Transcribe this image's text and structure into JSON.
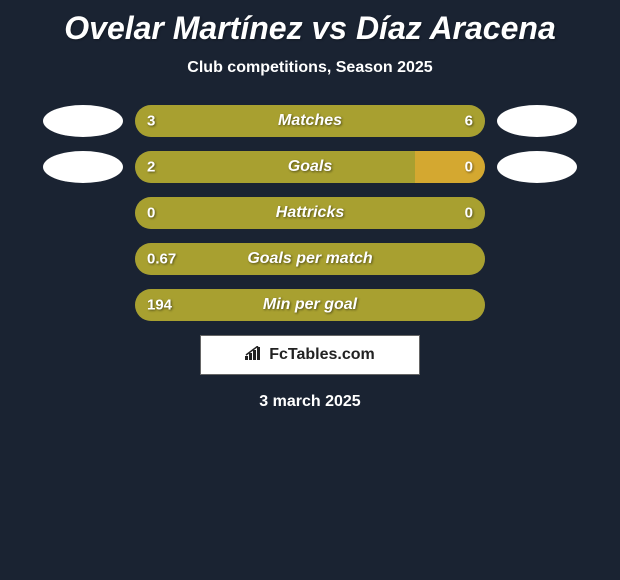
{
  "background_color": "#1a2332",
  "text_color": "#ffffff",
  "title": "Ovelar Martínez vs Díaz Aracena",
  "subtitle": "Club competitions, Season 2025",
  "date": "3 march 2025",
  "logo_text": "FcTables.com",
  "avatar_left_color": "#ffffff",
  "avatar_right_color": "#ffffff",
  "bar_background_color": "#3a4556",
  "stats": [
    {
      "label": "Matches",
      "left_value": "3",
      "right_value": "6",
      "left_pct": 33,
      "right_pct": 67,
      "left_color": "#a8a030",
      "right_color": "#a8a030",
      "show_avatars": true
    },
    {
      "label": "Goals",
      "left_value": "2",
      "right_value": "0",
      "left_pct": 80,
      "right_pct": 20,
      "left_color": "#a8a030",
      "right_color": "#d4a830",
      "show_avatars": true
    },
    {
      "label": "Hattricks",
      "left_value": "0",
      "right_value": "0",
      "left_pct": 50,
      "right_pct": 50,
      "left_color": "#a8a030",
      "right_color": "#a8a030",
      "show_avatars": false
    },
    {
      "label": "Goals per match",
      "left_value": "0.67",
      "right_value": "",
      "left_pct": 100,
      "right_pct": 0,
      "left_color": "#a8a030",
      "right_color": "#a8a030",
      "show_avatars": false
    },
    {
      "label": "Min per goal",
      "left_value": "194",
      "right_value": "",
      "left_pct": 100,
      "right_pct": 0,
      "left_color": "#a8a030",
      "right_color": "#a8a030",
      "show_avatars": false
    }
  ]
}
